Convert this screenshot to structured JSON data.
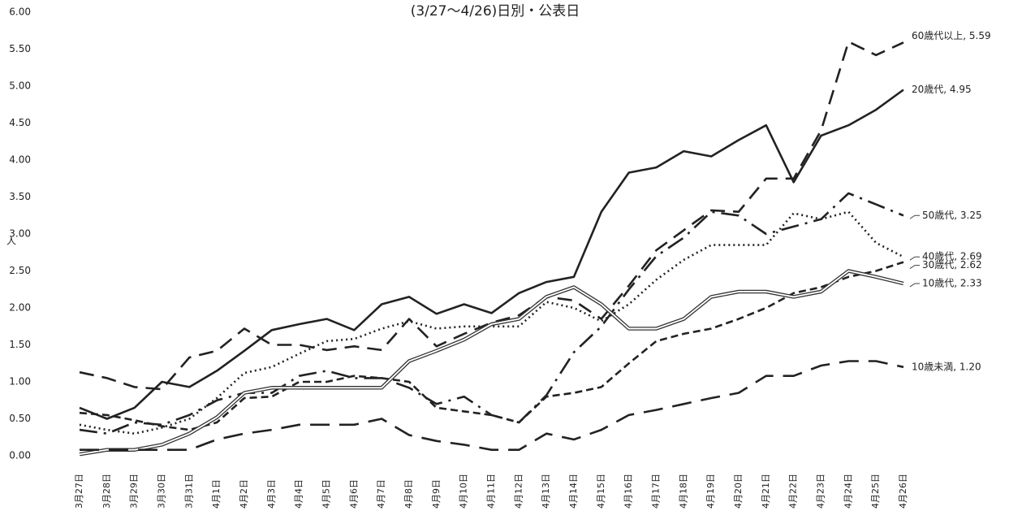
{
  "chart_data": {
    "type": "line",
    "title": "(3/27〜4/26)日別・公表日",
    "ylabel": "人",
    "categories": [
      "3月27日",
      "3月28日",
      "3月29日",
      "3月30日",
      "3月31日",
      "4月1日",
      "4月2日",
      "4月3日",
      "4月4日",
      "4月5日",
      "4月6日",
      "4月7日",
      "4月8日",
      "4月9日",
      "4月10日",
      "4月11日",
      "4月12日",
      "4月13日",
      "4月14日",
      "4月15日",
      "4月16日",
      "4月17日",
      "4月18日",
      "4月19日",
      "4月20日",
      "4月21日",
      "4月22日",
      "4月23日",
      "4月24日",
      "4月25日",
      "4月26日"
    ],
    "ylim": [
      0,
      6
    ],
    "yticks": [
      {
        "value": 0,
        "label": "0.00"
      },
      {
        "value": 0.5,
        "label": "0.50"
      },
      {
        "value": 1,
        "label": "1.00"
      },
      {
        "value": 1.5,
        "label": "1.50"
      },
      {
        "value": 2,
        "label": "2.00"
      },
      {
        "value": 2.5,
        "label": "2.50"
      },
      {
        "value": 3,
        "label": "3.00"
      },
      {
        "value": 3.5,
        "label": "3.50"
      },
      {
        "value": 4,
        "label": "4.00"
      },
      {
        "value": 4.5,
        "label": "4.50"
      },
      {
        "value": 5,
        "label": "5.00"
      },
      {
        "value": 5.5,
        "label": "5.50"
      },
      {
        "value": 6,
        "label": "6.00"
      }
    ],
    "grid": false,
    "series": [
      {
        "label": "60歳代以上, 5.59",
        "color": "#222222",
        "dash": "18 10",
        "width": 2.6,
        "values": [
          1.13,
          1.05,
          0.93,
          0.9,
          1.33,
          1.42,
          1.72,
          1.5,
          1.5,
          1.43,
          1.48,
          1.43,
          1.85,
          1.48,
          1.65,
          1.8,
          1.9,
          2.15,
          2.1,
          1.85,
          2.3,
          2.78,
          3.05,
          3.32,
          3.3,
          3.75,
          3.75,
          4.4,
          5.6,
          5.42,
          5.59
        ]
      },
      {
        "label": "20歳代, 4.95",
        "color": "#222222",
        "dash": "none",
        "width": 2.6,
        "values": [
          0.65,
          0.5,
          0.65,
          1.0,
          0.93,
          1.15,
          1.42,
          1.7,
          1.78,
          1.85,
          1.7,
          2.05,
          2.15,
          1.92,
          2.05,
          1.93,
          2.2,
          2.35,
          2.42,
          3.3,
          3.83,
          3.9,
          4.12,
          4.05,
          4.27,
          4.47,
          3.7,
          4.33,
          4.47,
          4.68,
          4.95
        ]
      },
      {
        "label": "50歳代, 3.25",
        "color": "#222222",
        "dash": "22 8 3 8",
        "width": 2.6,
        "values": [
          0.35,
          0.3,
          0.45,
          0.42,
          0.55,
          0.75,
          0.85,
          0.85,
          1.08,
          1.15,
          1.05,
          1.05,
          0.92,
          0.7,
          0.8,
          0.55,
          0.45,
          0.82,
          1.4,
          1.75,
          2.25,
          2.7,
          2.95,
          3.3,
          3.25,
          3.0,
          3.1,
          3.2,
          3.55,
          3.4,
          3.25
        ]
      },
      {
        "label": "40歳代, 2.69",
        "color": "#222222",
        "dash": "2 4",
        "width": 2.6,
        "values": [
          0.42,
          0.35,
          0.3,
          0.38,
          0.5,
          0.78,
          1.12,
          1.2,
          1.38,
          1.55,
          1.58,
          1.72,
          1.82,
          1.72,
          1.75,
          1.75,
          1.75,
          2.08,
          2.0,
          1.82,
          2.05,
          2.38,
          2.65,
          2.85,
          2.85,
          2.85,
          3.28,
          3.2,
          3.3,
          2.88,
          2.69
        ]
      },
      {
        "label": "30歳代, 2.62",
        "color": "#222222",
        "dash": "9 5",
        "width": 2.6,
        "values": [
          0.58,
          0.55,
          0.48,
          0.4,
          0.35,
          0.45,
          0.78,
          0.8,
          1.0,
          1.0,
          1.08,
          1.05,
          1.0,
          0.65,
          0.6,
          0.55,
          0.45,
          0.8,
          0.85,
          0.93,
          1.25,
          1.55,
          1.65,
          1.72,
          1.85,
          2.0,
          2.2,
          2.28,
          2.42,
          2.5,
          2.62
        ]
      },
      {
        "label": "10歳代, 2.33",
        "color": "#333333",
        "dash": "double",
        "width": 4.5,
        "values": [
          0.02,
          0.08,
          0.08,
          0.15,
          0.3,
          0.52,
          0.85,
          0.92,
          0.92,
          0.92,
          0.92,
          0.92,
          1.28,
          1.42,
          1.57,
          1.78,
          1.85,
          2.15,
          2.28,
          2.05,
          1.72,
          1.72,
          1.85,
          2.15,
          2.22,
          2.22,
          2.15,
          2.22,
          2.5,
          2.42,
          2.33
        ]
      },
      {
        "label": "10歳未満, 1.20",
        "color": "#222222",
        "dash": "24 12",
        "width": 2.6,
        "values": [
          0.08,
          0.08,
          0.08,
          0.08,
          0.08,
          0.22,
          0.3,
          0.35,
          0.42,
          0.42,
          0.42,
          0.5,
          0.28,
          0.2,
          0.15,
          0.08,
          0.08,
          0.3,
          0.22,
          0.35,
          0.55,
          0.62,
          0.7,
          0.78,
          0.85,
          1.08,
          1.08,
          1.22,
          1.28,
          1.28,
          1.2
        ]
      }
    ]
  }
}
